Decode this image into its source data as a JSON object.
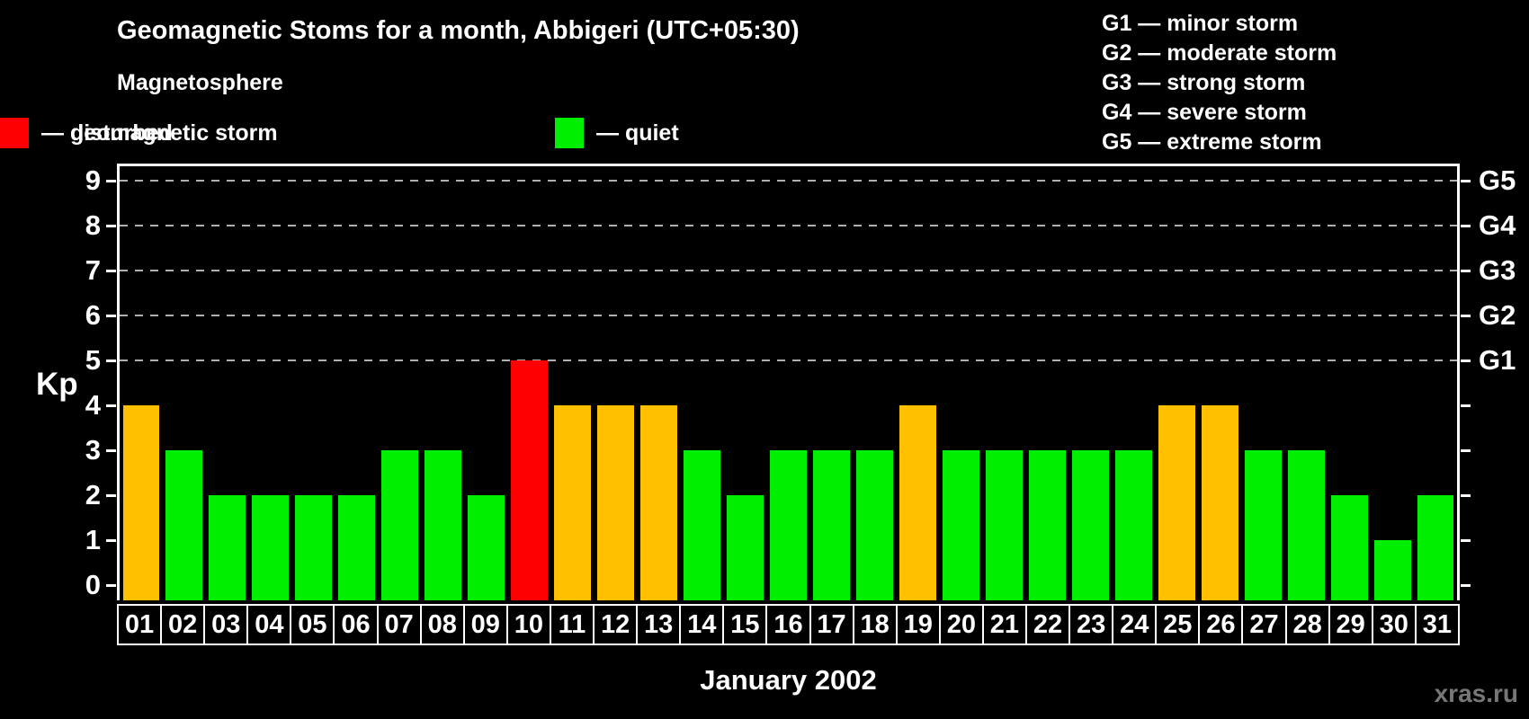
{
  "title": "Geomagnetic Stoms for a month, Abbigeri (UTC+05:30)",
  "subtitle": "Magnetosphere",
  "magnetosphere_legend": [
    {
      "key": "quiet",
      "label": "— quiet",
      "color": "#00ee00"
    },
    {
      "key": "disturbed",
      "label": "— disturbed",
      "color": "#ffc000"
    },
    {
      "key": "storm",
      "label": "— geomagnetic storm",
      "color": "#ff0000"
    }
  ],
  "g_scale_legend": [
    "G1 — minor storm",
    "G2 — moderate storm",
    "G3 — strong storm",
    "G4 — severe storm",
    "G5 — extreme storm"
  ],
  "y_axis": {
    "label": "Kp",
    "ticks": [
      "0",
      "1",
      "2",
      "3",
      "4",
      "5",
      "6",
      "7",
      "8",
      "9"
    ]
  },
  "right_axis": {
    "labels": [
      "G1",
      "G2",
      "G3",
      "G4",
      "G5"
    ],
    "levels": [
      5,
      6,
      7,
      8,
      9
    ]
  },
  "x_axis": {
    "title": "January 2002"
  },
  "watermark": "xras.ru",
  "chart_data": {
    "type": "bar",
    "title": "Geomagnetic Stoms for a month, Abbigeri (UTC+05:30)",
    "xlabel": "January 2002",
    "ylabel": "Kp",
    "ylim": [
      0,
      9.4
    ],
    "grid": "dashed horizontal at storm levels",
    "gridlines_at": [
      5,
      6,
      7,
      8,
      9
    ],
    "legend_position": "top-left and top-right",
    "categories": [
      "01",
      "02",
      "03",
      "04",
      "05",
      "06",
      "07",
      "08",
      "09",
      "10",
      "11",
      "12",
      "13",
      "14",
      "15",
      "16",
      "17",
      "18",
      "19",
      "20",
      "21",
      "22",
      "23",
      "24",
      "25",
      "26",
      "27",
      "28",
      "29",
      "30",
      "31"
    ],
    "values": [
      4,
      3,
      2,
      2,
      2,
      2,
      3,
      3,
      2,
      5,
      4,
      4,
      4,
      3,
      2,
      3,
      3,
      3,
      4,
      3,
      3,
      3,
      3,
      3,
      4,
      4,
      3,
      3,
      2,
      1,
      2
    ],
    "color_rule": {
      "quiet_max": 3,
      "disturbed_max": 4
    }
  }
}
